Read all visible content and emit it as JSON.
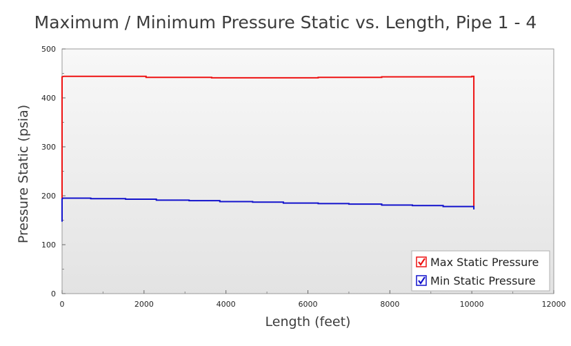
{
  "chart_data": {
    "type": "line",
    "title": "Maximum / Minimum Pressure Static vs. Length, Pipe 1 - 4",
    "xlabel": "Length (feet)",
    "ylabel": "Pressure Static (psia)",
    "xlim": [
      0,
      12000
    ],
    "ylim": [
      0,
      500
    ],
    "x_ticks": [
      0,
      2000,
      4000,
      6000,
      8000,
      10000,
      12000
    ],
    "y_ticks": [
      0,
      100,
      200,
      300,
      400,
      500
    ],
    "grid": false,
    "background": "gradient-gray",
    "legend_position": "bottom-right",
    "series": [
      {
        "name": "Max Static Pressure",
        "color": "#ee1111",
        "x": [
          0,
          0,
          40,
          2050,
          2050,
          3650,
          3650,
          6250,
          6250,
          7800,
          7800,
          10000,
          10000,
          10050,
          10050
        ],
        "y": [
          190,
          443,
          444,
          444,
          442,
          442,
          441,
          441,
          442,
          442,
          443,
          443,
          444,
          444,
          178
        ]
      },
      {
        "name": "Min Static Pressure",
        "color": "#1111cc",
        "x": [
          0,
          0,
          15,
          700,
          700,
          1550,
          1550,
          2300,
          2300,
          3100,
          3100,
          3850,
          3850,
          4650,
          4650,
          5400,
          5400,
          6250,
          6250,
          7000,
          7000,
          7800,
          7800,
          8550,
          8550,
          9300,
          9300,
          10050,
          10050
        ],
        "y": [
          147,
          193,
          195,
          195,
          194,
          194,
          193,
          193,
          191,
          191,
          190,
          190,
          188,
          188,
          187,
          187,
          185,
          185,
          184,
          184,
          183,
          183,
          181,
          181,
          180,
          180,
          178,
          178,
          172
        ]
      }
    ]
  }
}
